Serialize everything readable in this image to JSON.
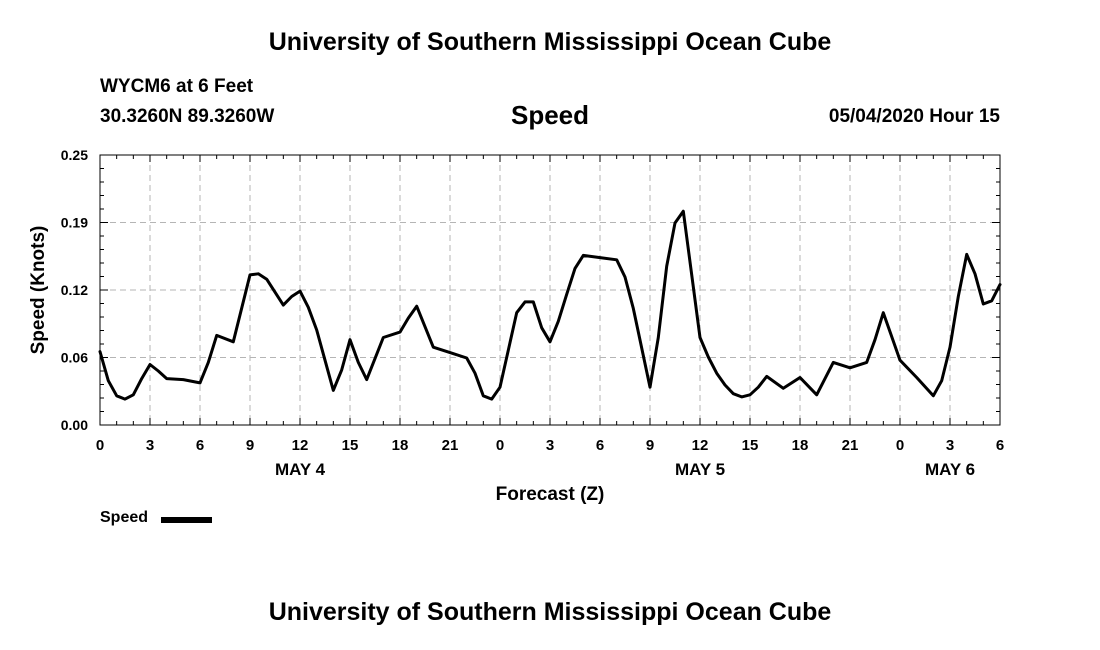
{
  "header": {
    "title": "University of Southern Mississippi Ocean Cube",
    "station": "WYCM6 at 6 Feet",
    "coords": "30.3260N 89.3260W",
    "variable": "Speed",
    "datetime": "05/04/2020 Hour 15"
  },
  "footer": {
    "title": "University of Southern Mississippi Ocean Cube"
  },
  "legend": {
    "label": "Speed",
    "color": "#000000"
  },
  "chart_data": {
    "type": "line",
    "title": "Speed",
    "xlabel": "Forecast (Z)",
    "ylabel": "Speed (Knots)",
    "xlim": [
      0,
      54
    ],
    "ylim": [
      0,
      0.25
    ],
    "y_ticks": [
      "0.00",
      "0.06",
      "0.12",
      "0.19",
      "0.25"
    ],
    "y_tick_values": [
      0,
      0.0625,
      0.125,
      0.1875,
      0.25
    ],
    "x_ticks": [
      {
        "h": 0,
        "label": "0"
      },
      {
        "h": 3,
        "label": "3"
      },
      {
        "h": 6,
        "label": "6"
      },
      {
        "h": 9,
        "label": "9"
      },
      {
        "h": 12,
        "label": "12"
      },
      {
        "h": 15,
        "label": "15"
      },
      {
        "h": 18,
        "label": "18"
      },
      {
        "h": 21,
        "label": "21"
      },
      {
        "h": 24,
        "label": "0"
      },
      {
        "h": 27,
        "label": "3"
      },
      {
        "h": 30,
        "label": "6"
      },
      {
        "h": 33,
        "label": "9"
      },
      {
        "h": 36,
        "label": "12"
      },
      {
        "h": 39,
        "label": "15"
      },
      {
        "h": 42,
        "label": "18"
      },
      {
        "h": 45,
        "label": "21"
      },
      {
        "h": 48,
        "label": "0"
      },
      {
        "h": 51,
        "label": "3"
      },
      {
        "h": 54,
        "label": "6"
      }
    ],
    "day_labels": [
      {
        "h": 12,
        "label": "MAY 4"
      },
      {
        "h": 36,
        "label": "MAY 5"
      },
      {
        "h": 51,
        "label": "MAY 6"
      }
    ],
    "grid": true,
    "series": [
      {
        "name": "Speed",
        "x": [
          0,
          0.5,
          1,
          1.5,
          2,
          2.5,
          3,
          3.5,
          4,
          5,
          6,
          6.5,
          7,
          8,
          9,
          9.5,
          10,
          11,
          11.5,
          12,
          12.5,
          13,
          13.5,
          14,
          14.5,
          15,
          15.5,
          16,
          17,
          18,
          18.5,
          19,
          20,
          21,
          22,
          22.5,
          23,
          23.5,
          24,
          25,
          25.5,
          26,
          26.5,
          27,
          27.5,
          28,
          28.5,
          29,
          30,
          31,
          31.5,
          32,
          33,
          33.5,
          34,
          34.5,
          35,
          36,
          36.5,
          37,
          37.5,
          38,
          38.5,
          39,
          39.5,
          40,
          41,
          42,
          43,
          44,
          45,
          46,
          46.5,
          47,
          48,
          49,
          50,
          50.5,
          51,
          51.5,
          52,
          52.5,
          53,
          53.5,
          54
        ],
        "values": [
          0.068,
          0.041,
          0.027,
          0.024,
          0.028,
          0.043,
          0.056,
          0.05,
          0.043,
          0.042,
          0.039,
          0.058,
          0.083,
          0.077,
          0.139,
          0.14,
          0.135,
          0.111,
          0.119,
          0.124,
          0.109,
          0.088,
          0.06,
          0.032,
          0.051,
          0.079,
          0.058,
          0.042,
          0.081,
          0.086,
          0.099,
          0.11,
          0.072,
          0.067,
          0.062,
          0.048,
          0.027,
          0.024,
          0.035,
          0.104,
          0.114,
          0.114,
          0.09,
          0.077,
          0.096,
          0.121,
          0.145,
          0.157,
          0.155,
          0.153,
          0.137,
          0.108,
          0.035,
          0.081,
          0.147,
          0.187,
          0.198,
          0.081,
          0.063,
          0.048,
          0.037,
          0.029,
          0.026,
          0.028,
          0.035,
          0.045,
          0.034,
          0.044,
          0.028,
          0.058,
          0.053,
          0.058,
          0.079,
          0.104,
          0.06,
          0.044,
          0.027,
          0.041,
          0.072,
          0.119,
          0.158,
          0.14,
          0.112,
          0.115,
          0.13
        ]
      }
    ]
  }
}
